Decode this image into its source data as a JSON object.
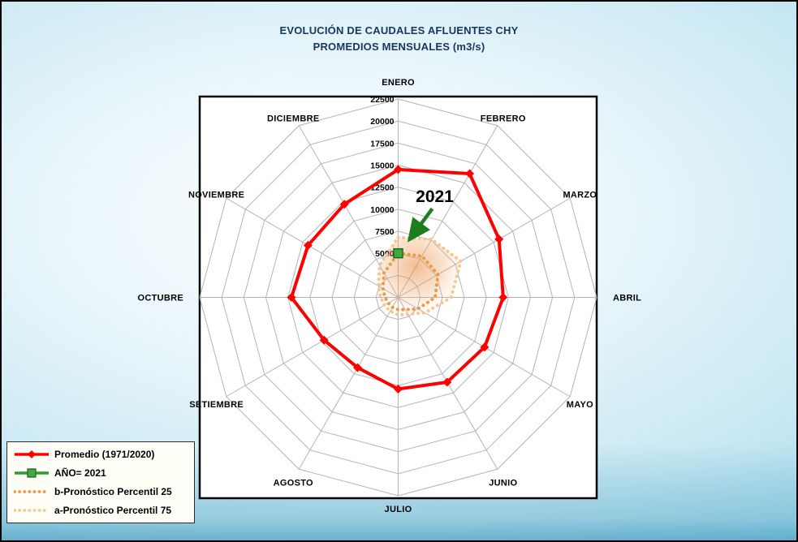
{
  "title": {
    "line1": "EVOLUCIÓN DE CAUDALES AFLUENTES CHY",
    "line2": "PROMEDIOS MENSUALES (m3/s)"
  },
  "annotation": {
    "label": "2021",
    "color": "#1e7d1e"
  },
  "legend": {
    "items": [
      {
        "label": "Promedio (1971/2020)",
        "color": "#ff0000",
        "marker": "diamond",
        "style": "solid"
      },
      {
        "label": "AÑO= 2021",
        "color": "#2e9b2e",
        "marker": "square",
        "style": "solid",
        "marker_fill": "#43a843",
        "marker_stroke": "#1c6b1c"
      },
      {
        "label": "b-Pronóstico Percentil 25",
        "color": "#ec9a45",
        "marker": "none",
        "style": "dotted"
      },
      {
        "label": "a-Pronóstico Percentil 75",
        "color": "#f6c693",
        "marker": "none",
        "style": "dotted"
      }
    ]
  },
  "chart_data": {
    "type": "radar",
    "categories": [
      "ENERO",
      "FEBRERO",
      "MARZO",
      "ABRIL",
      "MAYO",
      "JUNIO",
      "JULIO",
      "AGOSTO",
      "SETIEMBRE",
      "OCTUBRE",
      "NOVIEMBRE",
      "DICIEMBRE"
    ],
    "radial_axis": {
      "min": 0,
      "max": 22500,
      "step": 2500,
      "tick_labels": [
        "5000",
        "7500",
        "10000",
        "12500",
        "15000",
        "17500",
        "20000",
        "22500"
      ]
    },
    "grid": true,
    "legend_position": "bottom-left",
    "series": [
      {
        "name": "Promedio (1971/2020)",
        "color": "#ff0000",
        "style": "solid",
        "marker": "diamond",
        "values": [
          14500,
          16200,
          13200,
          11900,
          11300,
          11100,
          10400,
          9200,
          9700,
          12100,
          11800,
          12200
        ]
      },
      {
        "name": "AÑO= 2021",
        "color": "#2e9b2e",
        "style": "solid",
        "marker": "square",
        "marker_fill": "#43a843",
        "marker_stroke": "#1c6b1c",
        "values": [
          5000,
          null,
          null,
          null,
          null,
          null,
          null,
          null,
          null,
          null,
          null,
          null
        ]
      },
      {
        "name": "b-Pronóstico Percentil 25",
        "color": "#ec9a45",
        "style": "dotted",
        "marker": "none",
        "values": [
          5000,
          5400,
          5200,
          4200,
          2600,
          1600,
          1400,
          1300,
          1300,
          1500,
          2000,
          3200
        ]
      },
      {
        "name": "a-Pronóstico Percentil 75",
        "color": "#f6c693",
        "style": "dotted",
        "marker": "none",
        "values": [
          6800,
          7600,
          8200,
          6000,
          3500,
          2200,
          2000,
          1800,
          1800,
          2000,
          2600,
          4200
        ]
      }
    ]
  }
}
